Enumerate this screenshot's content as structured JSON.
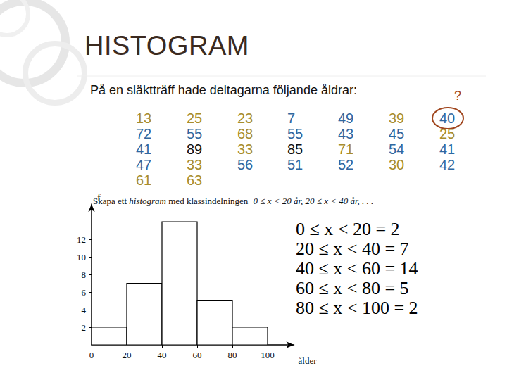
{
  "title": "HISTOGRAM",
  "intro": "På en släktträff hade deltagarna följande åldrar:",
  "question_mark": "?",
  "ages": [
    [
      13,
      72,
      41,
      47,
      61
    ],
    [
      25,
      55,
      89,
      33,
      63
    ],
    [
      23,
      68,
      33,
      56
    ],
    [
      7,
      55,
      85,
      51
    ],
    [
      49,
      43,
      71,
      52
    ],
    [
      39,
      45,
      54,
      30
    ],
    [
      40,
      25,
      41,
      42
    ]
  ],
  "task": [
    "Skapa ett ",
    "histogram",
    " med klassindelningen ",
    "0 ≤ x < 20 år,  20 ≤ x < 40 år, . . ."
  ],
  "equations": [
    "0 ≤ x < 20 = 2",
    "20 ≤ x < 40 = 7",
    "40 ≤ x < 60 = 14",
    "60 ≤ x < 80 = 5",
    "80 ≤ x < 100 = 2"
  ],
  "chart_data": {
    "type": "histogram",
    "bins": [
      0,
      20,
      40,
      60,
      80,
      100
    ],
    "counts": [
      2,
      7,
      14,
      5,
      2
    ],
    "xlabel": "ålder",
    "ylabel": "f",
    "color": "#ffffff",
    "xlim": [
      0,
      115
    ],
    "ylim": [
      0,
      16
    ],
    "xticks": [
      0,
      20,
      40,
      60,
      80,
      100
    ],
    "yticks": [
      2,
      4,
      6,
      8,
      10,
      12
    ],
    "grid": false
  }
}
